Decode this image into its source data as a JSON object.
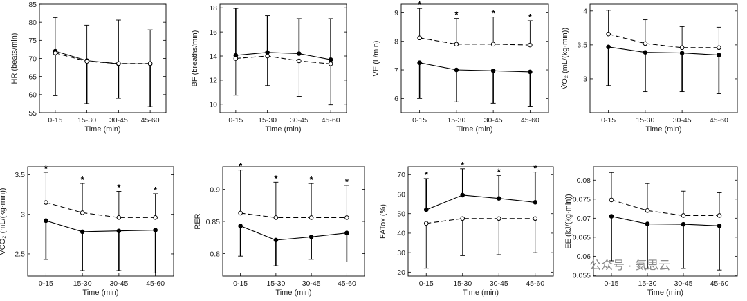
{
  "watermark": {
    "text": "公众号 · 氦思云"
  },
  "chart_data": [
    {
      "type": "line",
      "xlabel": "Time (min)",
      "ylabel": "HR (beats/min)",
      "categories": [
        "0-15",
        "15-30",
        "30-45",
        "45-60"
      ],
      "ylim": [
        55,
        85
      ],
      "yticks": [
        55,
        60,
        65,
        70,
        75,
        80,
        85
      ],
      "series": [
        {
          "style": "solid-filled",
          "values": [
            72,
            69.4,
            68.5,
            68.5
          ],
          "err_dir": "down",
          "err": [
            12.3,
            11.9,
            9.5,
            11.8
          ]
        },
        {
          "style": "dashed-open",
          "values": [
            71.5,
            69.2,
            68.6,
            68.6
          ],
          "err_dir": "up",
          "err": [
            9.8,
            10,
            12,
            9.3
          ]
        }
      ],
      "significance": [
        false,
        false,
        false,
        false
      ]
    },
    {
      "type": "line",
      "xlabel": "Time (min)",
      "ylabel": "BF (breaths/min)",
      "categories": [
        "0-15",
        "15-30",
        "30-45",
        "45-60"
      ],
      "ylim": [
        9.3,
        18.3
      ],
      "yticks": [
        10,
        12,
        14,
        16,
        18
      ],
      "series": [
        {
          "style": "solid-filled",
          "values": [
            14.05,
            14.3,
            14.2,
            13.7
          ],
          "err_dir": "up",
          "err": [
            3.9,
            3.05,
            2.9,
            3.4
          ]
        },
        {
          "style": "dashed-open",
          "values": [
            13.8,
            14,
            13.6,
            13.35
          ],
          "err_dir": "down",
          "err": [
            3.05,
            2.45,
            2.95,
            3.4
          ]
        }
      ],
      "significance": [
        false,
        false,
        false,
        false
      ]
    },
    {
      "type": "line",
      "xlabel": "Time (min)",
      "ylabel": "VE (L/min)",
      "categories": [
        "0-15",
        "15-30",
        "30-45",
        "45-60"
      ],
      "ylim": [
        5.5,
        9.3
      ],
      "yticks": [
        6,
        7,
        8,
        9
      ],
      "series": [
        {
          "style": "solid-filled",
          "values": [
            7.25,
            7,
            6.97,
            6.93
          ],
          "err_dir": "down",
          "err": [
            1.25,
            1.12,
            1.14,
            1.2
          ]
        },
        {
          "style": "dashed-open",
          "values": [
            8.12,
            7.9,
            7.9,
            7.87
          ],
          "err_dir": "up",
          "err": [
            1.03,
            0.9,
            0.95,
            0.85
          ]
        }
      ],
      "significance": [
        true,
        true,
        true,
        true
      ]
    },
    {
      "type": "line",
      "xlabel": "Time (min)",
      "ylabel": "V̇O₂ (mL/(kg·min))",
      "categories": [
        "0-15",
        "15-30",
        "30-45",
        "45-60"
      ],
      "ylim": [
        2.5,
        4.1
      ],
      "yticks": [
        3,
        3.5,
        4
      ],
      "series": [
        {
          "style": "solid-filled",
          "values": [
            3.47,
            3.39,
            3.38,
            3.35
          ],
          "err_dir": "down",
          "err": [
            0.57,
            0.58,
            0.57,
            0.57
          ]
        },
        {
          "style": "dashed-open",
          "values": [
            3.66,
            3.52,
            3.46,
            3.46
          ],
          "err_dir": "up",
          "err": [
            0.35,
            0.35,
            0.31,
            0.3
          ]
        }
      ],
      "significance": [
        false,
        false,
        false,
        false
      ]
    },
    {
      "type": "line",
      "xlabel": "Time (min)",
      "ylabel": "V̇CO₂ (mL/(kg·min))",
      "categories": [
        "0-15",
        "15-30",
        "30-45",
        "45-60"
      ],
      "ylim": [
        2.22,
        3.6
      ],
      "yticks": [
        2.5,
        3,
        3.5
      ],
      "series": [
        {
          "style": "solid-filled",
          "values": [
            2.92,
            2.78,
            2.79,
            2.8
          ],
          "err_dir": "down",
          "err": [
            0.49,
            0.49,
            0.5,
            0.54
          ]
        },
        {
          "style": "dashed-open",
          "values": [
            3.15,
            3.02,
            2.96,
            2.96
          ],
          "err_dir": "up",
          "err": [
            0.38,
            0.37,
            0.33,
            0.3
          ]
        }
      ],
      "significance": [
        true,
        true,
        true,
        true
      ]
    },
    {
      "type": "line",
      "xlabel": "Time (min)",
      "ylabel": "RER",
      "categories": [
        "0-15",
        "15-30",
        "30-45",
        "45-60"
      ],
      "ylim": [
        0.765,
        0.935
      ],
      "yticks": [
        0.8,
        0.85,
        0.9
      ],
      "series": [
        {
          "style": "solid-filled",
          "values": [
            0.843,
            0.821,
            0.826,
            0.832
          ],
          "err_dir": "down",
          "err": [
            0.047,
            0.04,
            0.035,
            0.045
          ]
        },
        {
          "style": "dashed-open",
          "values": [
            0.863,
            0.856,
            0.856,
            0.856
          ],
          "err_dir": "up",
          "err": [
            0.067,
            0.055,
            0.053,
            0.05
          ]
        }
      ],
      "significance": [
        true,
        true,
        true,
        true
      ]
    },
    {
      "type": "line",
      "xlabel": "Time (min)",
      "ylabel": "FATox (%)",
      "categories": [
        "0-15",
        "15-30",
        "30-45",
        "45-60"
      ],
      "ylim": [
        18,
        74
      ],
      "yticks": [
        20,
        30,
        40,
        50,
        60,
        70
      ],
      "series": [
        {
          "style": "solid-filled",
          "values": [
            52,
            59.5,
            57.8,
            55.8
          ],
          "err_dir": "up",
          "err": [
            16,
            13.5,
            11.7,
            15.5
          ]
        },
        {
          "style": "dashed-open",
          "values": [
            45,
            47.5,
            47.5,
            47.5
          ],
          "err_dir": "down",
          "err": [
            23,
            19,
            18.5,
            17.5
          ]
        }
      ],
      "significance": [
        true,
        true,
        true,
        true
      ]
    },
    {
      "type": "line",
      "xlabel": "Time (min)",
      "ylabel": "EE (kJ/(kg·min))",
      "categories": [
        "0-15",
        "15-30",
        "30-45",
        "45-60"
      ],
      "ylim": [
        0.0548,
        0.0835
      ],
      "yticks": [
        0.055,
        0.06,
        0.065,
        0.07,
        0.075,
        0.08
      ],
      "series": [
        {
          "style": "solid-filled",
          "values": [
            0.0705,
            0.0685,
            0.0684,
            0.068
          ],
          "err_dir": "down",
          "err": [
            0.0117,
            0.0117,
            0.0116,
            0.0116
          ]
        },
        {
          "style": "dashed-open",
          "values": [
            0.0748,
            0.072,
            0.0707,
            0.0707
          ],
          "err_dir": "up",
          "err": [
            0.0072,
            0.0071,
            0.0064,
            0.006
          ]
        }
      ],
      "significance": [
        false,
        false,
        false,
        false
      ]
    }
  ]
}
